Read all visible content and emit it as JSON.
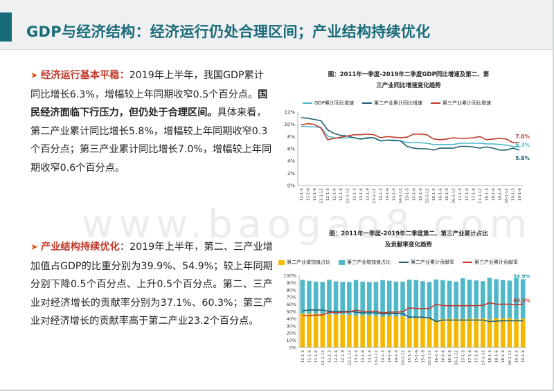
{
  "title": "GDP与经济结构：经济运行仍处合理区间；产业结构持续优化",
  "section1": {
    "heading": "经济运行基本平稳：",
    "text1": "2019年上半年，我国GDP累计同比增长6.3%，增幅较上年同期收窄0.5个百分点。",
    "bold": "国民经济面临下行压力，但仍处于合理区间。",
    "text2": "具体来看，第二产业累计同比增长5.8%，增幅较上年同期收窄0.3个百分点；第三产业累计同比增长7.0%，增幅较上年同期收窄0.6个百分点。"
  },
  "section2": {
    "heading": "产业结构持续优化",
    "text": "：2019年上半年，第二、三产业增加值占GDP的比重分别为39.9%、54.9%；较上年同期分别下降0.5个百分点、上升0.5个百分点。第二、三产业对经济增长的贡献率分别为37.1%、60.3%；第三产业对经济增长的贡献率高于第二产业23.2个百分点。"
  },
  "watermark": "www.baogao8.com",
  "chart_data": [
    {
      "type": "line",
      "title_line1": "图：2011年一季度-2019年二季度GDP同比增速及第二、第",
      "title_line2": "三产业同比增速变化趋势",
      "categories": [
        "11-1-3",
        "11-1-6",
        "11-1-9",
        "11-1-12",
        "12-1-3",
        "12-1-6",
        "12-1-9",
        "12-1-12",
        "13-1-3",
        "13-1-6",
        "13-1-9",
        "13-1-12",
        "14-1-3",
        "14-1-6",
        "14-1-9",
        "14-1-12",
        "15-1-3",
        "15-1-6",
        "15-1-9",
        "15-1-12",
        "16-1-3",
        "16-1-6",
        "16-1-9",
        "16-1-12",
        "17-1-3",
        "17-1-6",
        "17-1-9",
        "17-1-12",
        "18-1-3",
        "18-1-6",
        "18-1-9",
        "18-1-12",
        "19-1-3",
        "19-1-6"
      ],
      "yticks": [
        "0%",
        "2%",
        "4%",
        "6%",
        "8%",
        "10%",
        "12%"
      ],
      "ylim": [
        0,
        12
      ],
      "series": [
        {
          "name": "GDP累计同比增速",
          "color": "#4fb8c9",
          "values": [
            9.7,
            9.6,
            9.6,
            9.5,
            8.1,
            7.8,
            7.7,
            7.8,
            7.8,
            7.6,
            7.7,
            7.8,
            7.3,
            7.4,
            7.3,
            7.3,
            7.0,
            7.0,
            7.0,
            6.9,
            6.7,
            6.7,
            6.7,
            6.7,
            6.9,
            6.9,
            6.9,
            6.9,
            6.8,
            6.8,
            6.7,
            6.6,
            6.4,
            6.3
          ]
        },
        {
          "name": "第二产业累计同比增速",
          "color": "#1f5f6e",
          "values": [
            11.1,
            11.0,
            10.8,
            10.6,
            9.1,
            8.5,
            8.2,
            8.1,
            7.8,
            7.6,
            7.8,
            7.8,
            7.3,
            7.4,
            7.4,
            7.3,
            6.4,
            6.1,
            6.0,
            6.0,
            5.8,
            6.1,
            6.1,
            6.1,
            6.4,
            6.4,
            6.3,
            6.1,
            6.3,
            6.1,
            5.8,
            5.8,
            6.1,
            5.8
          ]
        },
        {
          "name": "第三产业累计同比增速",
          "color": "#c0392b",
          "values": [
            9.9,
            10.1,
            10.0,
            9.4,
            7.5,
            7.7,
            7.9,
            8.1,
            8.3,
            8.3,
            8.4,
            8.3,
            7.8,
            8.0,
            7.9,
            7.8,
            7.9,
            8.4,
            8.4,
            8.3,
            7.6,
            7.5,
            7.6,
            7.8,
            7.7,
            7.7,
            7.8,
            8.0,
            7.5,
            7.6,
            7.7,
            7.6,
            7.0,
            7.0
          ]
        }
      ],
      "end_labels": [
        "7.0%",
        "6.3%",
        "5.8%"
      ]
    },
    {
      "type": "bar",
      "title_line1": "图：2011年一季度-2019年二季度第二、第三产业累计占比",
      "title_line2": "及贡献率变化趋势",
      "categories": [
        "11-1-3",
        "11-1-6",
        "11-1-9",
        "11-1-12",
        "12-1-3",
        "12-1-6",
        "12-1-9",
        "12-1-12",
        "13-1-3",
        "13-1-6",
        "13-1-9",
        "13-1-12",
        "14-1-3",
        "14-1-6",
        "14-1-9",
        "14-1-12",
        "15-1-3",
        "15-1-6",
        "15-1-9",
        "15-1-12",
        "16-1-3",
        "16-1-6",
        "16-1-9",
        "16-1-12",
        "17-1-3",
        "17-1-6",
        "17-1-9",
        "17-1-12",
        "18-1-3",
        "18-1-6",
        "18-1-9",
        "18-1-12",
        "19-1-3",
        "19-1-6"
      ],
      "yticks": [
        "0%",
        "10%",
        "20%",
        "30%",
        "40%",
        "50%",
        "60%",
        "70%",
        "80%",
        "90%",
        "100%"
      ],
      "ylim": [
        0,
        100
      ],
      "series": [
        {
          "name": "第二产业增加值占比",
          "color": "#f5b800",
          "kind": "bar",
          "values": [
            47.0,
            47.2,
            47.0,
            46.8,
            45.8,
            45.6,
            45.5,
            45.3,
            44.3,
            44.4,
            44.4,
            44.0,
            42.8,
            43.6,
            43.3,
            43.1,
            40.2,
            40.8,
            40.6,
            40.5,
            37.5,
            39.4,
            39.8,
            39.8,
            39.5,
            39.9,
            40.1,
            40.5,
            38.9,
            40.4,
            40.4,
            40.7,
            39.0,
            39.9
          ]
        },
        {
          "name": "第三产业增加值占比",
          "color": "#4fb8c9",
          "kind": "bar",
          "values": [
            46.9,
            45.3,
            44.4,
            44.2,
            48.2,
            46.2,
            45.5,
            45.5,
            49.4,
            47.0,
            46.4,
            46.9,
            50.7,
            49.0,
            48.0,
            48.2,
            54.0,
            52.9,
            51.4,
            50.5,
            56.9,
            54.1,
            52.8,
            51.6,
            56.5,
            54.1,
            52.9,
            51.6,
            57.7,
            54.4,
            53.1,
            52.2,
            57.3,
            54.9
          ]
        },
        {
          "name": "第二产业累计贡献率",
          "color": "#1f5f6e",
          "kind": "line",
          "values": [
            51.0,
            52.0,
            52.0,
            52.0,
            50.0,
            50.0,
            50.0,
            50.0,
            49.0,
            48.0,
            48.0,
            48.0,
            46.5,
            47.0,
            47.0,
            47.0,
            42.0,
            42.0,
            42.0,
            41.0,
            36.0,
            38.0,
            38.0,
            38.0,
            38.0,
            38.0,
            38.0,
            38.0,
            36.0,
            36.5,
            37.0,
            37.0,
            37.0,
            37.1
          ]
        },
        {
          "name": "第三产业累计贡献率",
          "color": "#c0392b",
          "kind": "line",
          "values": [
            44.0,
            44.0,
            45.0,
            45.0,
            49.0,
            48.0,
            49.0,
            49.0,
            52.0,
            50.0,
            50.0,
            50.0,
            48.0,
            49.0,
            49.0,
            49.5,
            55.0,
            54.0,
            54.0,
            54.0,
            60.0,
            58.0,
            58.0,
            58.0,
            58.0,
            58.0,
            58.0,
            58.5,
            62.0,
            60.0,
            60.0,
            60.0,
            59.0,
            60.3
          ]
        }
      ],
      "end_labels": [
        "54.9%",
        "60.3%"
      ]
    }
  ]
}
